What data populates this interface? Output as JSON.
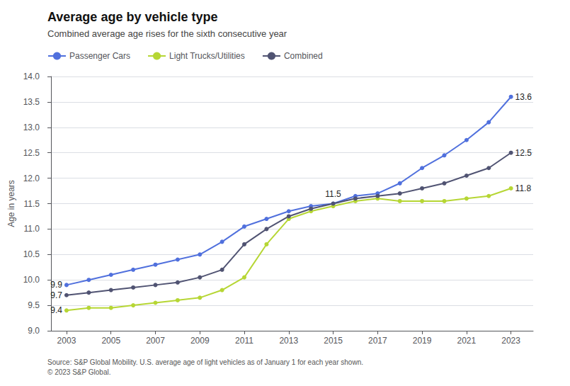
{
  "chart_data": {
    "type": "line",
    "title": "Average age by vehicle type",
    "subtitle": "Combined average age rises for the sixth consecutive year",
    "source": [
      "Source: S&P Global Mobility. U.S. average age of light vehicles as of January 1 for each year shown.",
      "© 2023 S&P Global."
    ],
    "ylabel": "Age in years",
    "x": [
      2003,
      2004,
      2005,
      2006,
      2007,
      2008,
      2009,
      2010,
      2011,
      2012,
      2013,
      2014,
      2015,
      2016,
      2017,
      2018,
      2019,
      2020,
      2021,
      2022,
      2023
    ],
    "series": [
      {
        "name": "Passenger Cars",
        "values": [
          9.9,
          10.0,
          10.1,
          10.2,
          10.3,
          10.4,
          10.5,
          10.75,
          11.05,
          11.2,
          11.35,
          11.45,
          11.5,
          11.65,
          11.7,
          11.9,
          12.2,
          12.45,
          12.75,
          13.1,
          13.6
        ]
      },
      {
        "name": "Light Trucks/Utilities",
        "values": [
          9.4,
          9.45,
          9.45,
          9.5,
          9.55,
          9.6,
          9.65,
          9.8,
          10.05,
          10.7,
          11.2,
          11.35,
          11.45,
          11.55,
          11.6,
          11.55,
          11.55,
          11.55,
          11.6,
          11.65,
          11.8
        ]
      },
      {
        "name": "Combined",
        "values": [
          9.7,
          9.75,
          9.8,
          9.85,
          9.9,
          9.95,
          10.05,
          10.2,
          10.7,
          11.0,
          11.25,
          11.4,
          11.5,
          11.6,
          11.65,
          11.7,
          11.8,
          11.9,
          12.05,
          12.2,
          12.5
        ]
      }
    ],
    "annotations": [
      {
        "text": "9.9",
        "series": "Passenger Cars",
        "x": 2003,
        "y": 9.9
      },
      {
        "text": "9.4",
        "series": "Light Trucks/Utilities",
        "x": 2003,
        "y": 9.4
      },
      {
        "text": "9.7",
        "series": "Combined",
        "x": 2003,
        "y": 9.7
      },
      {
        "text": "11.5",
        "series": "Passenger Cars",
        "x": 2015,
        "y": 11.5
      },
      {
        "text": "13.6",
        "series": "Passenger Cars",
        "x": 2023,
        "y": 13.6
      },
      {
        "text": "12.5",
        "series": "Combined",
        "x": 2023,
        "y": 12.5
      },
      {
        "text": "11.8",
        "series": "Light Trucks/Utilities",
        "x": 2023,
        "y": 11.8
      }
    ],
    "xlim": [
      2002.3,
      2024.0
    ],
    "xticks": [
      2003,
      2005,
      2007,
      2009,
      2011,
      2013,
      2015,
      2017,
      2019,
      2021,
      2023
    ],
    "ylim": [
      9.0,
      14.0
    ],
    "yticks": [
      {
        "value": 9.0,
        "label": "9.0"
      },
      9.5,
      {
        "value": 10.0,
        "label": "10.0"
      },
      10.5,
      {
        "value": 11.0,
        "label": "11.0"
      },
      11.5,
      {
        "value": 12.0,
        "label": "12.0"
      },
      12.5,
      {
        "value": 13.0,
        "label": "13.0"
      },
      13.5,
      {
        "value": 14.0,
        "label": "14.0"
      }
    ],
    "grid": true,
    "legend": "upper left",
    "marker": "circle"
  }
}
